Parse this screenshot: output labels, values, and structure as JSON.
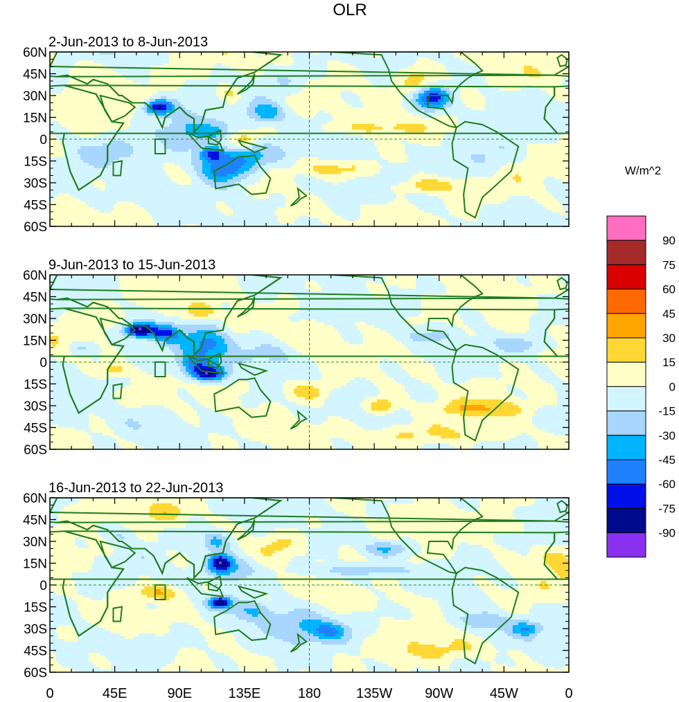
{
  "chart_data": {
    "type": "heatmap",
    "title": "OLR",
    "panels": [
      {
        "title": "2-Jun-2013 to 8-Jun-2013"
      },
      {
        "title": "9-Jun-2013 to 15-Jun-2013"
      },
      {
        "title": "16-Jun-2013 to 22-Jun-2013"
      }
    ],
    "y_ticks": [
      "60N",
      "45N",
      "30N",
      "15N",
      "0",
      "15S",
      "30S",
      "45S",
      "60S"
    ],
    "x_ticks": [
      "0",
      "45E",
      "90E",
      "135E",
      "180",
      "135W",
      "90W",
      "45W",
      "0"
    ],
    "colorbar": {
      "units": "W/m^2",
      "labels": [
        "90",
        "75",
        "60",
        "45",
        "30",
        "15",
        "0",
        "-15",
        "-30",
        "-45",
        "-60",
        "-75",
        "-90"
      ],
      "colors": [
        "#ff6ec0",
        "#a52a2a",
        "#d80000",
        "#ff6a00",
        "#ffa500",
        "#ffd835",
        "#ffffc8",
        "#d2f5ff",
        "#a8d6ff",
        "#00b4ff",
        "#1e82ff",
        "#0010e8",
        "#000a8c",
        "#8a30f0"
      ]
    }
  }
}
